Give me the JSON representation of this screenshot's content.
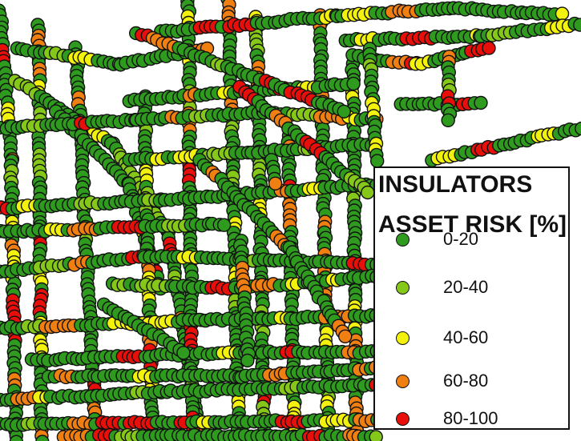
{
  "legend": {
    "title": "INSULATORS",
    "subtitle": "ASSET RISK [%]",
    "items": [
      {
        "label": "0-20",
        "color": "#2e9a1e"
      },
      {
        "label": "20-40",
        "color": "#86c81a"
      },
      {
        "label": "40-60",
        "color": "#f3f20c"
      },
      {
        "label": "60-80",
        "color": "#f07f12"
      },
      {
        "label": "80-100",
        "color": "#e80f0a"
      }
    ]
  },
  "colors": {
    "marker_outline": "#111111",
    "background": "#ffffff"
  }
}
